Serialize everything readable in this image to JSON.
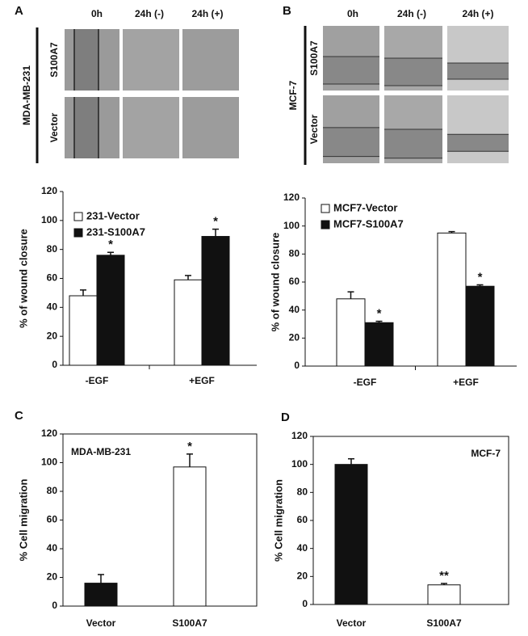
{
  "panels": [
    {
      "label": "A",
      "cell_line": "MDA-MB-231",
      "columns": [
        "0h",
        "24h (-)",
        "24h (+)"
      ],
      "rows": [
        "S100A7",
        "Vector"
      ]
    },
    {
      "label": "B",
      "cell_line": "MCF-7",
      "columns": [
        "0h",
        "24h (-)",
        "24h (+)"
      ],
      "rows": [
        "S100A7",
        "Vector"
      ]
    }
  ],
  "chart_data": [
    {
      "type": "bar",
      "ylabel": "% of wound closure",
      "ylim": [
        0,
        120
      ],
      "yticks": [
        0,
        20,
        40,
        60,
        80,
        100,
        120
      ],
      "categories": [
        "-EGF",
        "+EGF"
      ],
      "series": [
        {
          "name": "231-Vector",
          "color": "#ffffff",
          "values": [
            48,
            59
          ],
          "errors": [
            4,
            3
          ],
          "significance": [
            null,
            null
          ]
        },
        {
          "name": "231-S100A7",
          "color": "#111111",
          "values": [
            76,
            89
          ],
          "errors": [
            2,
            5
          ],
          "significance": [
            "*",
            "*"
          ]
        }
      ]
    },
    {
      "type": "bar",
      "ylabel": "% of wound closure",
      "ylim": [
        0,
        120
      ],
      "yticks": [
        0,
        20,
        40,
        60,
        80,
        100,
        120
      ],
      "categories": [
        "-EGF",
        "+EGF"
      ],
      "series": [
        {
          "name": "MCF7-Vector",
          "color": "#ffffff",
          "values": [
            48,
            95
          ],
          "errors": [
            5,
            1
          ],
          "significance": [
            null,
            null
          ]
        },
        {
          "name": "MCF7-S100A7",
          "color": "#111111",
          "values": [
            31,
            57
          ],
          "errors": [
            1,
            1
          ],
          "significance": [
            "*",
            "*"
          ]
        }
      ]
    },
    {
      "type": "bar",
      "panel": "C",
      "label": "MDA-MB-231",
      "ylabel": "% Cell migration",
      "ylim": [
        0,
        120
      ],
      "yticks": [
        0,
        20,
        40,
        60,
        80,
        100,
        120
      ],
      "categories": [
        "Vector",
        "S100A7"
      ],
      "series": [
        {
          "colors": [
            "#111111",
            "#ffffff"
          ],
          "values": [
            16,
            97
          ],
          "errors": [
            6,
            9
          ],
          "significance": [
            null,
            "*"
          ]
        }
      ]
    },
    {
      "type": "bar",
      "panel": "D",
      "label": "MCF-7",
      "ylabel": "% Cell migration",
      "ylim": [
        0,
        120
      ],
      "yticks": [
        0,
        20,
        40,
        60,
        80,
        100,
        120
      ],
      "categories": [
        "Vector",
        "S100A7"
      ],
      "series": [
        {
          "colors": [
            "#111111",
            "#ffffff"
          ],
          "values": [
            100,
            14
          ],
          "errors": [
            4,
            1
          ],
          "significance": [
            null,
            "**"
          ]
        }
      ]
    }
  ]
}
